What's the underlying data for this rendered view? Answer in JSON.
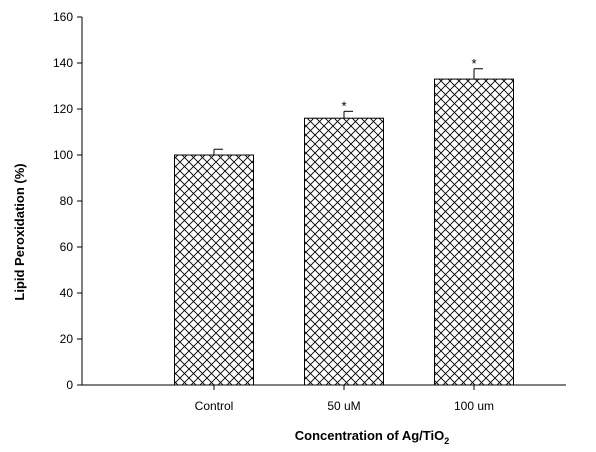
{
  "chart_data": {
    "type": "bar",
    "title": "",
    "xlabel": "Concentration of Ag/TiO",
    "xlabel_subscript": "2",
    "ylabel": "Lipid Peroxidation (%)",
    "ylim": [
      0,
      160
    ],
    "yticks": [
      0,
      20,
      40,
      60,
      80,
      100,
      120,
      140,
      160
    ],
    "categories": [
      "Control",
      "50 uM",
      "100 um"
    ],
    "values": [
      100,
      116,
      133
    ],
    "errors": [
      2.5,
      3,
      4.5
    ],
    "significance": [
      "",
      "*",
      "*"
    ],
    "bar_fill": "crosshatch",
    "colors": {
      "bar_stroke": "#000000",
      "axis": "#000000",
      "background": "#ffffff"
    },
    "grid": false,
    "legend": "none"
  }
}
